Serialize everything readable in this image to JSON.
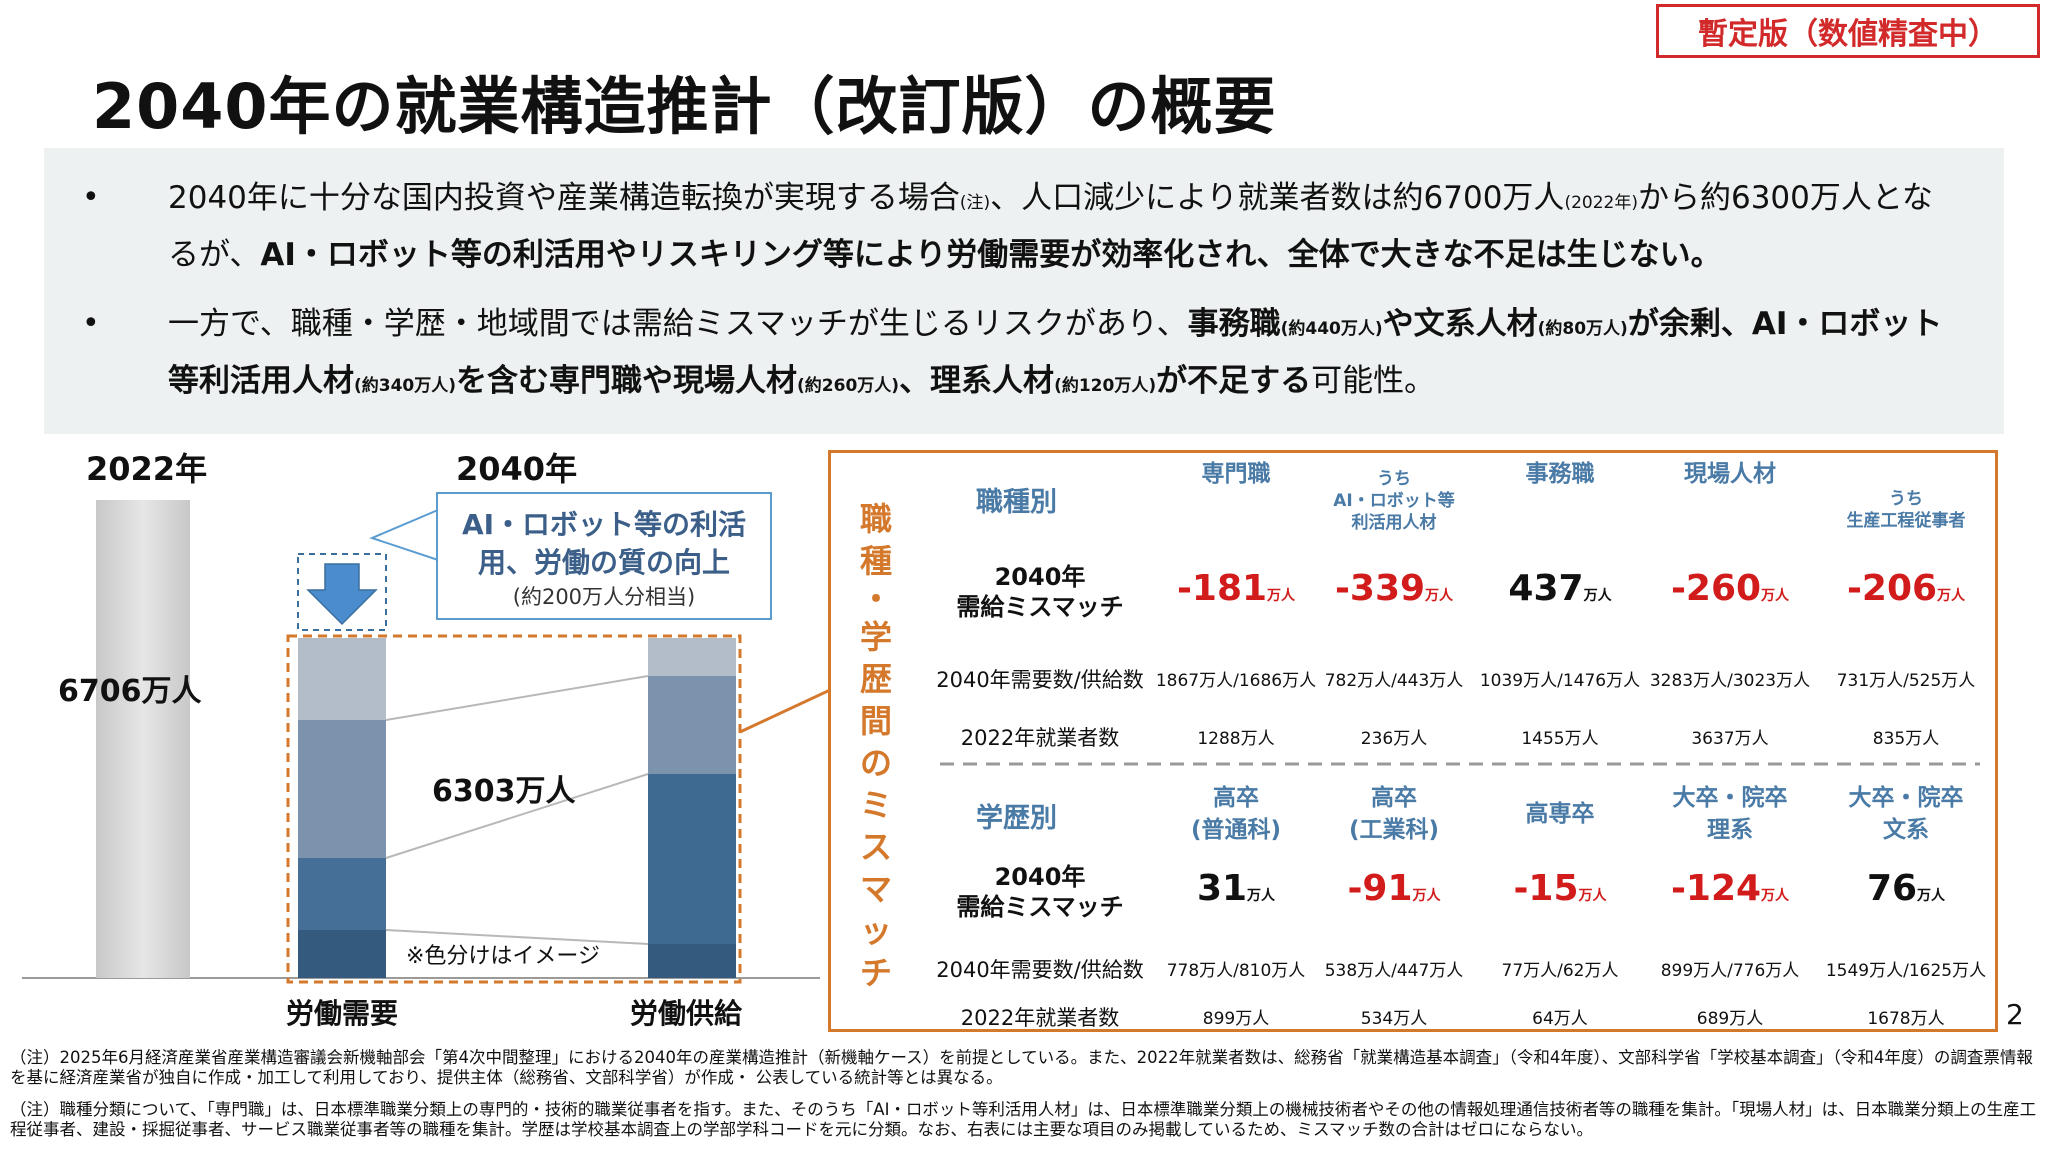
{
  "status_stamp": "暫定版（数値精査中）",
  "title": "2040年の就業構造推計（改訂版）の概要",
  "bullets": {
    "b1": {
      "t1": "2040年に十分な国内投資や産業構造転換が実現する場合",
      "note": "(注)",
      "t2": "、人口減少により就業者数は約6700万人",
      "year_note": "(2022年)",
      "t3": "から約6300万人となるが、",
      "bold": "AI・ロボット等の利活用やリスキリング等により労働需要が効率化され、全体で大きな不足は生じない。"
    },
    "b2": {
      "t1": "一方で、職種・学歴・地域間では需給ミスマッチが生じるリスクがあり、",
      "s1": "事務職",
      "n1": "(約440万人)",
      "s2": "や文系人材",
      "n2": "(約80万人)",
      "s3": "が余剰、",
      "s4": "AI・ロボット等利活用人材",
      "n4": "(約340万人)",
      "s5": "を含む専門職や現場人材",
      "n5": "(約260万人)",
      "s6": "、理系人材",
      "n6": "(約120万人)",
      "s7": "が不足する",
      "t2": "可能性。"
    }
  },
  "left_chart": {
    "year_2022": "2022年",
    "year_2040": "2040年",
    "total_2022": "6706万人",
    "total_2040": "6303万人",
    "callout_main": "AI・ロボット等の利活用、労働の質の向上",
    "callout_sub": "(約200万人分相当)",
    "color_note": "※色分けはイメージ",
    "demand_label": "労働需要",
    "supply_label": "労働供給"
  },
  "mismatch_table": {
    "vertical_title": "職種・学歴間のミスマッチ",
    "occupation": {
      "category": "職種別",
      "headers": [
        "専門職",
        "うち\nAI・ロボット等\n利活用人材",
        "事務職",
        "現場人材",
        "うち\n生産工程従事者"
      ],
      "mismatch_label": "2040年\n需給ミスマッチ",
      "mismatch": [
        "-181",
        "-339",
        "437",
        "-260",
        "-206"
      ],
      "unit": "万人",
      "demand_supply_label": "2040年需要数/供給数",
      "demand_supply": [
        "1867万人/1686万人",
        "782万人/443万人",
        "1039万人/1476万人",
        "3283万人/3023万人",
        "731万人/525万人"
      ],
      "employed_label": "2022年就業者数",
      "employed": [
        "1288万人",
        "236万人",
        "1455万人",
        "3637万人",
        "835万人"
      ]
    },
    "education": {
      "category": "学歴別",
      "headers": [
        "高卒\n(普通科)",
        "高卒\n(工業科)",
        "高専卒",
        "大卒・院卒\n理系",
        "大卒・院卒\n文系"
      ],
      "mismatch_label": "2040年\n需給ミスマッチ",
      "mismatch": [
        "31",
        "-91",
        "-15",
        "-124",
        "76"
      ],
      "unit": "万人",
      "demand_supply_label": "2040年需要数/供給数",
      "demand_supply": [
        "778万人/810万人",
        "538万人/447万人",
        "77万人/62万人",
        "899万人/776万人",
        "1549万人/1625万人"
      ],
      "employed_label": "2022年就業者数",
      "employed": [
        "899万人",
        "534万人",
        "64万人",
        "689万人",
        "1678万人"
      ]
    }
  },
  "page_number": "2",
  "footnotes": [
    "（注）2025年6月経済産業省産業構造審議会新機軸部会「第4次中間整理」における2040年の産業構造推計（新機軸ケース）を前提としている。また、2022年就業者数は、総務省「就業構造基本調査」（令和4年度）、文部科学省「学校基本調査」（令和4年度）の調査票情報を基に経済産業省が独自に作成・加工して利用しており、提供主体（総務省、文部科学省）が作成・ 公表している統計等とは異なる。",
    "（注）職種分類について、「専門職」は、日本標準職業分類上の専門的・技術的職業従事者を指す。また、そのうち「AI・ロボット等利活用人材」は、日本標準職業分類上の機械技術者やその他の情報処理通信技術者等の職種を集計。「現場人材」は、日本職業分類上の生産工程従事者、建設・採掘従事者、サービス職業従事者等の職種を集計。学歴は学校基本調査上の学部学科コードを元に分類。なお、右表には主要な項目のみ掲載しているため、ミスマッチ数の合計はゼロにならない。"
  ]
}
